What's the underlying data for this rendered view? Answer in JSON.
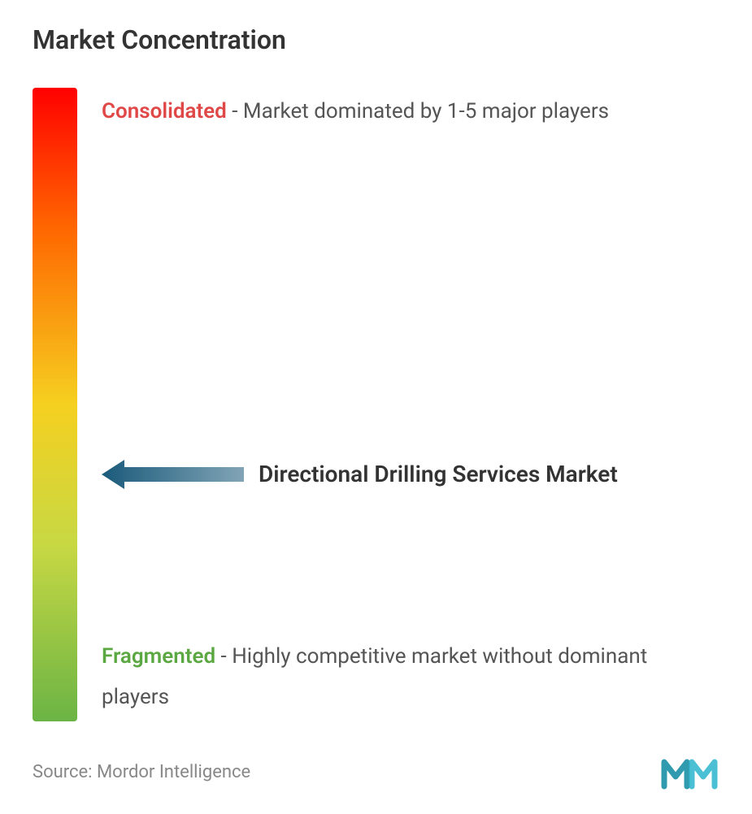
{
  "title": "Market Concentration",
  "gradient": {
    "top_color": "#ff0000",
    "upper_mid_color": "#ff6600",
    "mid_color": "#f5d020",
    "lower_mid_color": "#c8d843",
    "bottom_color": "#6bb445"
  },
  "top_label": {
    "keyword": "Consolidated",
    "keyword_color": "#e04848",
    "rest": " - Market dominated by 1-5 major players"
  },
  "middle": {
    "arrow_color": "#1a5a7a",
    "arrow_width": 175,
    "arrow_height": 40,
    "market_label": "Directional Drilling Services Market",
    "position_pct": 61
  },
  "bottom_label": {
    "keyword": "Fragmented",
    "keyword_color": "#5ba843",
    "rest": " - Highly competitive market without dominant players"
  },
  "source": "Source: Mordor Intelligence",
  "logo": {
    "primary_color": "#1a8fa6",
    "secondary_color": "#2bb5cc"
  }
}
